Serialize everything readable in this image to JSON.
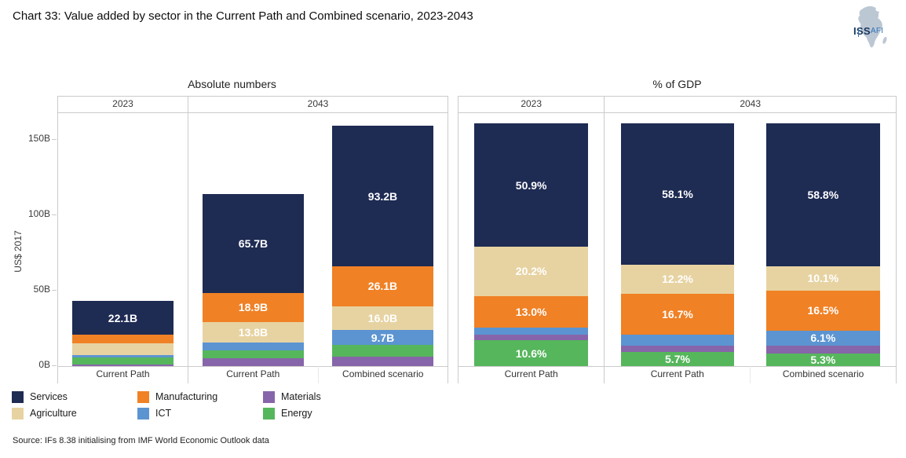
{
  "title": "Chart 33: Value added by sector in the Current Path and Combined scenario, 2023-2043",
  "logo": {
    "iss": "ISS",
    "afi": "AFI"
  },
  "source": "Source: IFs 8.38 initialising from IMF World Economic Outlook data",
  "colors": {
    "sectors": {
      "Services": "#1e2b53",
      "Manufacturing": "#f08125",
      "Materials": "#8765aa",
      "Agriculture": "#e7d3a2",
      "ICT": "#5b94d1",
      "Energy": "#56b65c"
    }
  },
  "legend": [
    "Services",
    "Manufacturing",
    "Materials",
    "Agriculture",
    "ICT",
    "Energy"
  ],
  "chart_data": [
    {
      "type": "bar",
      "stacked": true,
      "title": "Absolute numbers",
      "ylabel": "US$ 2017",
      "unit": "US$ billions (2017)",
      "ymax": 168,
      "yticks": [
        {
          "value": 0,
          "label": "0B"
        },
        {
          "value": 50,
          "label": "50B"
        },
        {
          "value": 100,
          "label": "100B"
        },
        {
          "value": 150,
          "label": "150B"
        }
      ],
      "stack_order": [
        "Materials",
        "Energy",
        "ICT",
        "Agriculture",
        "Manufacturing",
        "Services"
      ],
      "facets": [
        {
          "label": "2023",
          "bars": [
            {
              "category": "Current Path",
              "values": {
                "Services": 22.1,
                "Manufacturing": 5.6,
                "Agriculture": 7.8,
                "ICT": 1.6,
                "Energy": 4.7,
                "Materials": 1.2
              },
              "labels": {
                "Services": "22.1B"
              }
            }
          ]
        },
        {
          "label": "2043",
          "bars": [
            {
              "category": "Current Path",
              "values": {
                "Services": 65.7,
                "Manufacturing": 18.9,
                "Agriculture": 13.8,
                "ICT": 5.2,
                "Energy": 5.2,
                "Materials": 5.2
              },
              "labels": {
                "Services": "65.7B",
                "Manufacturing": "18.9B",
                "Agriculture": "13.8B"
              }
            },
            {
              "category": "Combined scenario",
              "values": {
                "Services": 93.2,
                "Manufacturing": 26.1,
                "Agriculture": 16.0,
                "ICT": 9.7,
                "Energy": 7.9,
                "Materials": 6.2
              },
              "labels": {
                "Services": "93.2B",
                "Manufacturing": "26.1B",
                "Agriculture": "16.0B",
                "ICT": "9.7B"
              }
            }
          ]
        }
      ]
    },
    {
      "type": "bar",
      "stacked": true,
      "title": "% of GDP",
      "ylabel": "",
      "unit": "% of GDP",
      "ymax": 104.5,
      "yticks": [],
      "stack_order": [
        "Energy",
        "Materials",
        "ICT",
        "Manufacturing",
        "Agriculture",
        "Services"
      ],
      "facets": [
        {
          "label": "2023",
          "bars": [
            {
              "category": "Current Path",
              "values": {
                "Services": 50.9,
                "Agriculture": 20.2,
                "Manufacturing": 13.0,
                "ICT": 3.1,
                "Materials": 2.2,
                "Energy": 10.6
              },
              "labels": {
                "Services": "50.9%",
                "Agriculture": "20.2%",
                "Manufacturing": "13.0%",
                "Energy": "10.6%"
              }
            }
          ]
        },
        {
          "label": "2043",
          "bars": [
            {
              "category": "Current Path",
              "values": {
                "Services": 58.1,
                "Agriculture": 12.2,
                "Manufacturing": 16.7,
                "ICT": 4.6,
                "Materials": 2.7,
                "Energy": 5.7
              },
              "labels": {
                "Services": "58.1%",
                "Agriculture": "12.2%",
                "Manufacturing": "16.7%",
                "Energy": "5.7%"
              }
            },
            {
              "category": "Combined scenario",
              "values": {
                "Services": 58.8,
                "Agriculture": 10.1,
                "Manufacturing": 16.5,
                "ICT": 6.1,
                "Materials": 3.2,
                "Energy": 5.3
              },
              "labels": {
                "Services": "58.8%",
                "Agriculture": "10.1%",
                "Manufacturing": "16.5%",
                "ICT": "6.1%",
                "Energy": "5.3%"
              }
            }
          ]
        }
      ]
    }
  ]
}
